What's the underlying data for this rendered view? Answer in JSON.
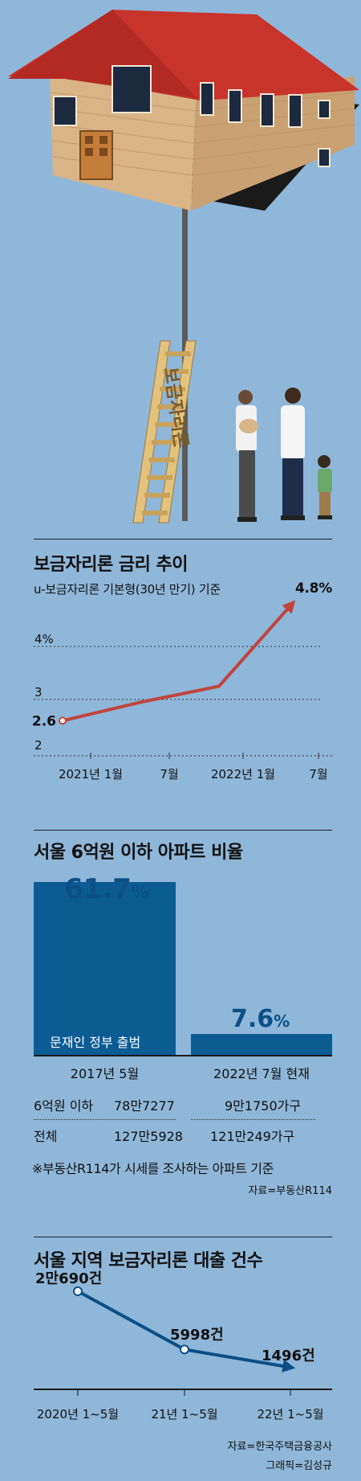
{
  "illustration": {
    "ladder_text": "보금자리론",
    "colors": {
      "roof": "#c8332c",
      "wall": "#d9b58a",
      "pole": "#555555",
      "ladder": "#e3c27e"
    }
  },
  "chart1": {
    "title": "보금자리론 금리 추이",
    "subtitle": "u-보금자리론 기본형(30년 만기) 기준",
    "end_label": "4.8%",
    "start_label": "2.6",
    "color": "#c0443c"
  },
  "chart2": {
    "title": "서울 6억원 이하 아파트 비율",
    "bar1_value_label": "61.7",
    "bar1_pct": "%",
    "bar1_note": "문재인 정부 출범",
    "bar2_value_label": "7.6",
    "bar2_pct": "%",
    "bar1_category": "2017년 5월",
    "bar2_category": "2022년 7월 현재",
    "row1": {
      "label": "6억원 이하",
      "v1": "78만7277",
      "v2": "9만1750가구"
    },
    "row2": {
      "label": "전체",
      "v1": "127만5928",
      "v2": "121만249가구"
    },
    "footnote": "※부동산R114가 시세를 조사하는 아파트 기준",
    "source": "자료=부동산R114",
    "color": "#0b5c93"
  },
  "chart3": {
    "title": "서울 지역 보금자리론 대출 건수",
    "labels": [
      "2만690건",
      "5998건",
      "1496건"
    ],
    "source": "자료=한국주택금융공사",
    "credit": "그래픽=김성규",
    "color": "#0b4f86"
  },
  "chart_data": [
    {
      "type": "line",
      "title": "보금자리론 금리 추이",
      "subtitle": "u-보금자리론 기본형(30년 만기) 기준",
      "x": [
        "2021년 1월",
        "7월",
        "2022년 1월",
        "7월"
      ],
      "y_ticks": [
        "2",
        "3",
        "4%"
      ],
      "series": [
        {
          "x": [
            0,
            0.75,
            1.5,
            2.2
          ],
          "values": [
            2.6,
            2.95,
            3.25,
            4.8
          ]
        }
      ],
      "ylim": [
        2,
        4.9
      ]
    },
    {
      "type": "bar",
      "title": "서울 6억원 이하 아파트 비율",
      "categories": [
        "2017년 5월",
        "2022년 7월 현재"
      ],
      "values": [
        61.7,
        7.6
      ],
      "unit": "%"
    },
    {
      "type": "line",
      "title": "서울 지역 보금자리론 대출 건수",
      "categories": [
        "2020년 1~5월",
        "21년 1~5월",
        "22년 1~5월"
      ],
      "values": [
        20690,
        5998,
        1496
      ]
    }
  ]
}
